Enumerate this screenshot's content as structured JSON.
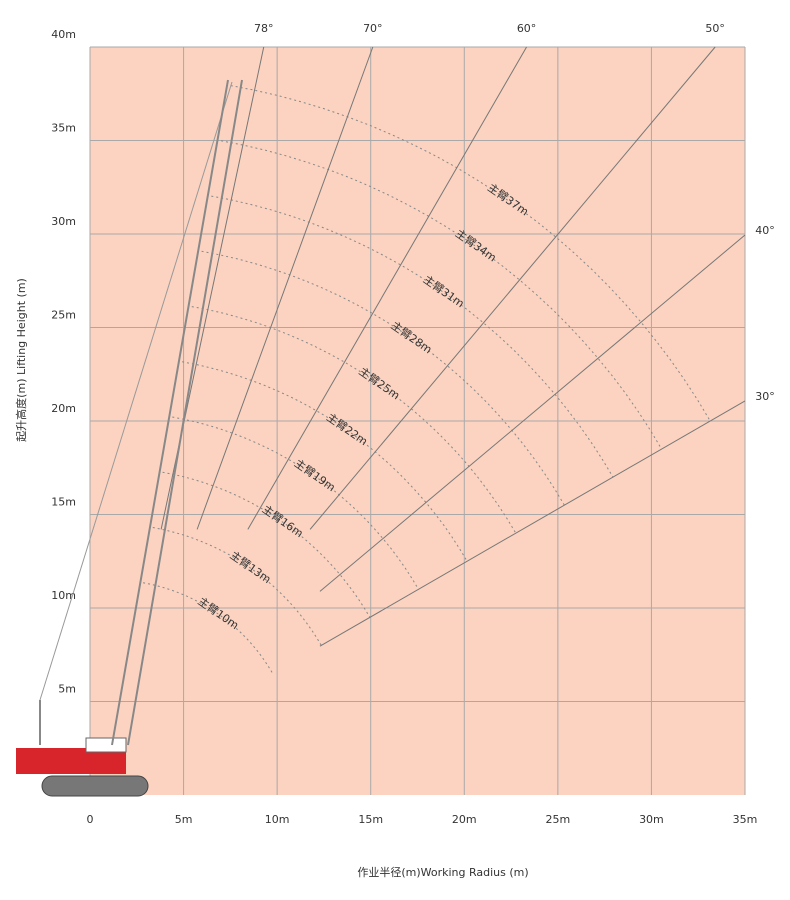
{
  "chart_data": {
    "type": "range",
    "x_label": "作业半径(m)Working Radius (m)",
    "y_label": "起升高度(m) Lifting Height (m)",
    "xlim": [
      0,
      35
    ],
    "ylim": [
      0,
      40
    ],
    "xticks": [
      0,
      {
        "value": 5,
        "label": "5m"
      },
      {
        "value": 10,
        "label": "10m"
      },
      {
        "value": 15,
        "label": "15m"
      },
      {
        "value": 20,
        "label": "20m"
      },
      {
        "value": 25,
        "label": "25m"
      },
      {
        "value": 30,
        "label": "30m"
      },
      {
        "value": 35,
        "label": "35m"
      }
    ],
    "yticks": [
      {
        "value": 5,
        "label": "5m"
      },
      {
        "value": 10,
        "label": "10m"
      },
      {
        "value": 15,
        "label": "15m"
      },
      {
        "value": 20,
        "label": "20m"
      },
      {
        "value": 25,
        "label": "25m"
      },
      {
        "value": 30,
        "label": "30m"
      },
      {
        "value": 35,
        "label": "35m"
      },
      {
        "value": 40,
        "label": "40m"
      }
    ],
    "grid": true,
    "angles": [
      {
        "value": 78,
        "label": "78°"
      },
      {
        "value": 70,
        "label": "70°"
      },
      {
        "value": 60,
        "label": "60°"
      },
      {
        "value": 50,
        "label": "50°"
      },
      {
        "value": 40,
        "label": "40°"
      },
      {
        "value": 30,
        "label": "30°"
      }
    ],
    "booms": [
      {
        "value": 10,
        "label": "主臂10m"
      },
      {
        "value": 13,
        "label": "主臂13m"
      },
      {
        "value": 16,
        "label": "主臂16m"
      },
      {
        "value": 19,
        "label": "主臂19m"
      },
      {
        "value": 22,
        "label": "主臂22m"
      },
      {
        "value": 25,
        "label": "主臂25m"
      },
      {
        "value": 28,
        "label": "主臂28m"
      },
      {
        "value": 31,
        "label": "主臂31m"
      },
      {
        "value": 34,
        "label": "主臂34m"
      },
      {
        "value": 37,
        "label": "主臂37m"
      }
    ],
    "background": "#fbd3c0"
  }
}
